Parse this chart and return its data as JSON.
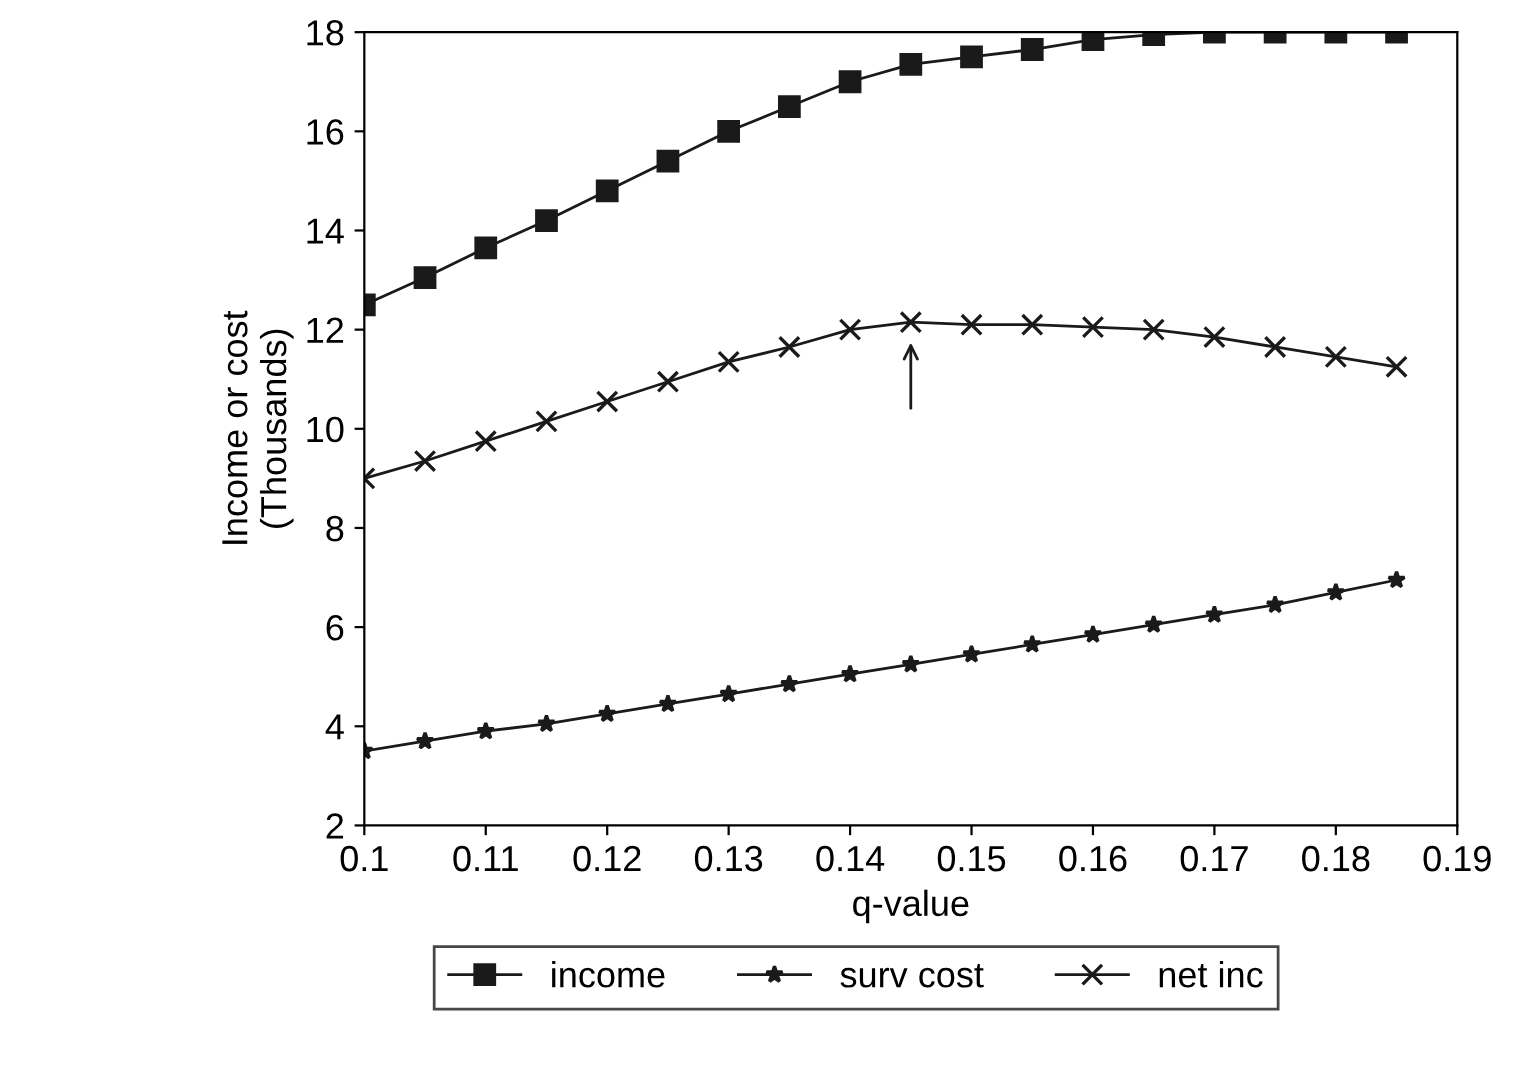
{
  "chart_data": {
    "type": "line",
    "xlabel": "q-value",
    "ylabel": "Income or cost\n(Thousands)",
    "x": [
      0.1,
      0.105,
      0.11,
      0.115,
      0.12,
      0.125,
      0.13,
      0.135,
      0.14,
      0.145,
      0.15,
      0.155,
      0.16,
      0.165,
      0.17,
      0.175,
      0.18,
      0.185
    ],
    "series": [
      {
        "name": "income",
        "color": "#1a1a1a",
        "marker": "square",
        "values": [
          12.5,
          13.05,
          13.65,
          14.2,
          14.8,
          15.4,
          16.0,
          16.5,
          17.0,
          17.35,
          17.5,
          17.65,
          17.85,
          17.95,
          18.0,
          18.0,
          18.0,
          18.0
        ]
      },
      {
        "name": "surv cost",
        "color": "#1a1a1a",
        "marker": "star",
        "values": [
          3.5,
          3.7,
          3.9,
          4.05,
          4.25,
          4.45,
          4.65,
          4.85,
          5.05,
          5.25,
          5.45,
          5.65,
          5.85,
          6.05,
          6.25,
          6.45,
          6.7,
          6.95
        ]
      },
      {
        "name": "net inc",
        "color": "#1a1a1a",
        "marker": "cross",
        "values": [
          9.0,
          9.35,
          9.75,
          10.15,
          10.55,
          10.95,
          11.35,
          11.65,
          12.0,
          12.15,
          12.1,
          12.1,
          12.05,
          12.0,
          11.85,
          11.65,
          11.45,
          11.25
        ]
      }
    ],
    "xlim": [
      0.1,
      0.19
    ],
    "xticks": [
      0.1,
      0.11,
      0.12,
      0.13,
      0.14,
      0.15,
      0.16,
      0.17,
      0.18,
      0.19
    ],
    "ylim": [
      2,
      18
    ],
    "yticks": [
      2,
      4,
      6,
      8,
      10,
      12,
      14,
      16,
      18
    ],
    "legend": "bottom",
    "line_style": "solid"
  }
}
